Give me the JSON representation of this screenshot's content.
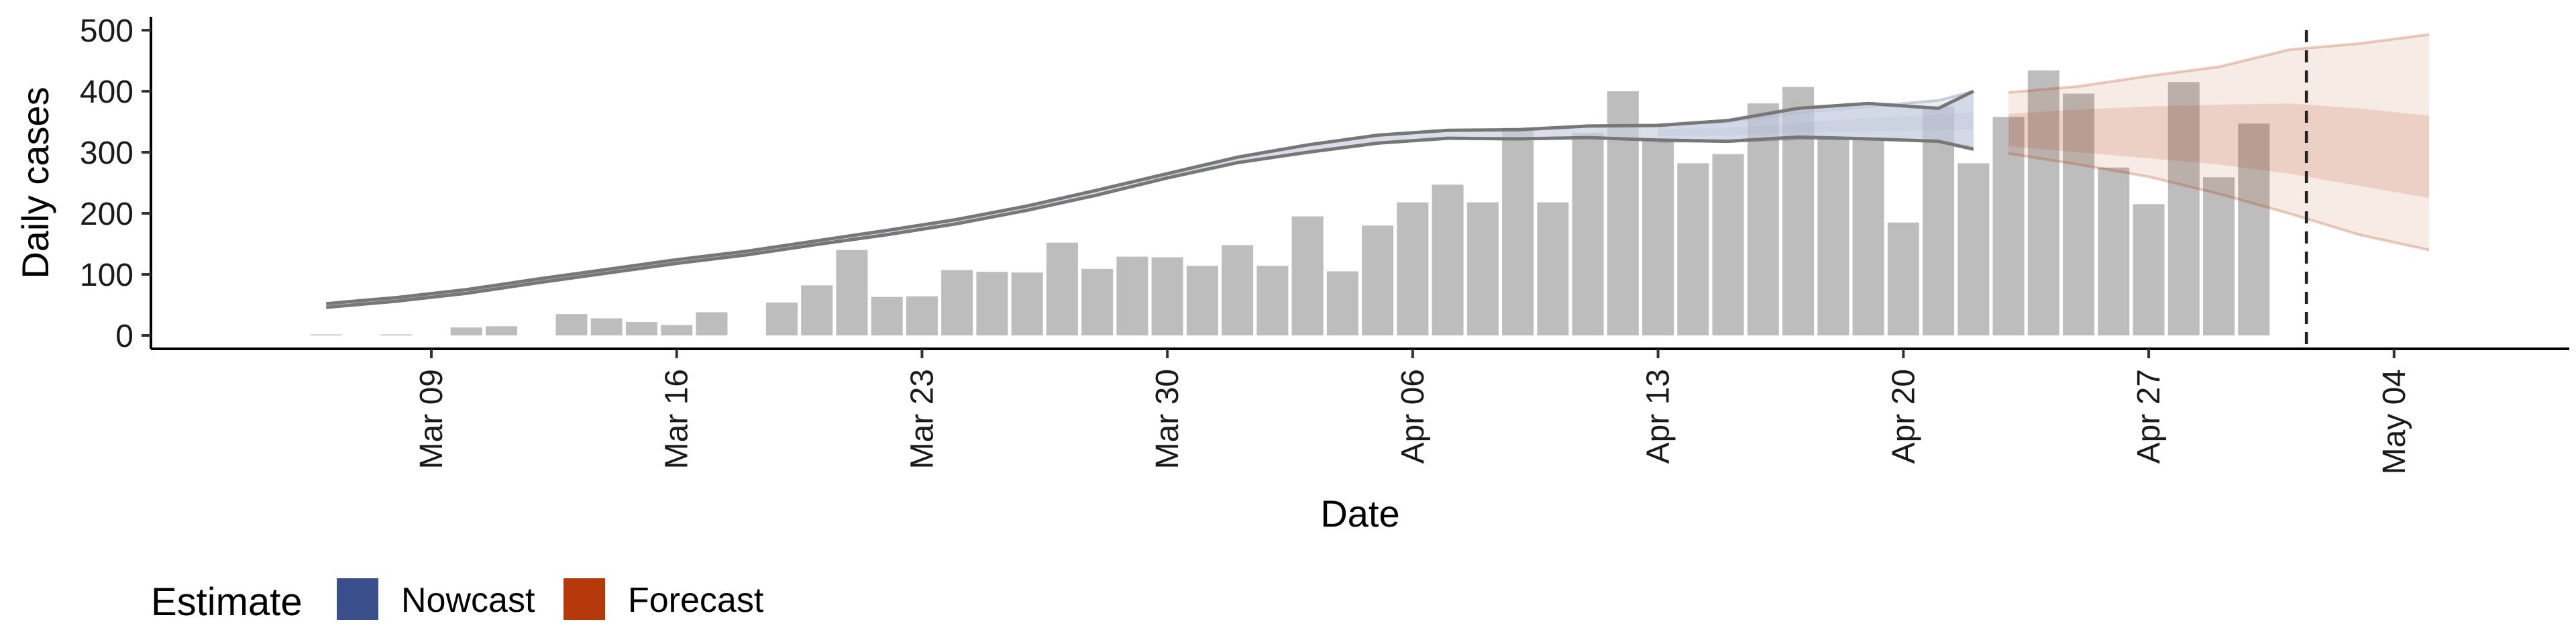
{
  "chart_data": {
    "type": "bar",
    "xlabel": "Date",
    "ylabel": "Daily cases",
    "ylim": [
      0,
      500
    ],
    "y_ticks": [
      0,
      100,
      200,
      300,
      400,
      500
    ],
    "x_ticks": [
      "2020-03-09",
      "2020-03-16",
      "2020-03-23",
      "2020-03-30",
      "2020-04-06",
      "2020-04-13",
      "2020-04-20",
      "2020-04-27",
      "2020-05-04"
    ],
    "x_tick_labels": [
      "Mar 09",
      "Mar 16",
      "Mar 23",
      "Mar 30",
      "Apr 06",
      "Apr 13",
      "Apr 20",
      "Apr 27",
      "May 04"
    ],
    "xlim": [
      "2020-03-01",
      "2020-05-09"
    ],
    "grid": false,
    "bar_color": "#bdbdbd",
    "reported_cases": {
      "dates": [
        "2020-03-06",
        "2020-03-07",
        "2020-03-08",
        "2020-03-09",
        "2020-03-10",
        "2020-03-11",
        "2020-03-12",
        "2020-03-13",
        "2020-03-14",
        "2020-03-15",
        "2020-03-16",
        "2020-03-17",
        "2020-03-18",
        "2020-03-19",
        "2020-03-20",
        "2020-03-21",
        "2020-03-22",
        "2020-03-23",
        "2020-03-24",
        "2020-03-25",
        "2020-03-26",
        "2020-03-27",
        "2020-03-28",
        "2020-03-29",
        "2020-03-30",
        "2020-03-31",
        "2020-04-01",
        "2020-04-02",
        "2020-04-03",
        "2020-04-04",
        "2020-04-05",
        "2020-04-06",
        "2020-04-07",
        "2020-04-08",
        "2020-04-09",
        "2020-04-10",
        "2020-04-11",
        "2020-04-12",
        "2020-04-13",
        "2020-04-14",
        "2020-04-15",
        "2020-04-16",
        "2020-04-17",
        "2020-04-18",
        "2020-04-19",
        "2020-04-20",
        "2020-04-21",
        "2020-04-22",
        "2020-04-23",
        "2020-04-24",
        "2020-04-25",
        "2020-04-26",
        "2020-04-27",
        "2020-04-28",
        "2020-04-29",
        "2020-04-30",
        "2020-05-01"
      ],
      "values": [
        1,
        0,
        1,
        0,
        13,
        15,
        0,
        35,
        28,
        22,
        17,
        38,
        0,
        54,
        82,
        140,
        63,
        64,
        107,
        104,
        103,
        152,
        109,
        129,
        128,
        114,
        148,
        114,
        195,
        105,
        180,
        218,
        247,
        218,
        340,
        218,
        332,
        400,
        320,
        282,
        297,
        380,
        407,
        324,
        324,
        185,
        375,
        282,
        358,
        434,
        396,
        275,
        215,
        415,
        259,
        347,
        0
      ]
    },
    "estimate_line": {
      "dates": [
        "2020-03-06",
        "2020-03-08",
        "2020-03-10",
        "2020-03-12",
        "2020-03-14",
        "2020-03-16",
        "2020-03-18",
        "2020-03-20",
        "2020-03-22",
        "2020-03-24",
        "2020-03-26",
        "2020-03-28",
        "2020-03-30",
        "2020-04-01",
        "2020-04-03",
        "2020-04-05",
        "2020-04-07",
        "2020-04-09",
        "2020-04-11",
        "2020-04-13",
        "2020-04-15",
        "2020-04-17",
        "2020-04-19",
        "2020-04-21",
        "2020-04-22"
      ],
      "upper": [
        52,
        62,
        75,
        92,
        108,
        124,
        138,
        155,
        172,
        190,
        212,
        238,
        265,
        292,
        312,
        328,
        336,
        337,
        343,
        344,
        352,
        372,
        380,
        372,
        400
      ],
      "lower": [
        46,
        56,
        69,
        86,
        102,
        118,
        132,
        149,
        165,
        183,
        205,
        230,
        258,
        283,
        300,
        315,
        323,
        322,
        324,
        320,
        318,
        325,
        322,
        318,
        305
      ]
    },
    "series": [
      {
        "name": "Nowcast",
        "color": "#3a4f8c",
        "dates": [
          "2020-04-13",
          "2020-04-15",
          "2020-04-17",
          "2020-04-19",
          "2020-04-21",
          "2020-04-22"
        ],
        "upper90": [
          345,
          350,
          365,
          375,
          385,
          400
        ],
        "upper50": [
          338,
          340,
          348,
          356,
          362,
          365
        ],
        "lower50": [
          326,
          328,
          332,
          334,
          336,
          338
        ],
        "lower90": [
          318,
          318,
          322,
          322,
          318,
          308
        ]
      },
      {
        "name": "Forecast",
        "color": "#b5390b",
        "dates": [
          "2020-04-23",
          "2020-04-25",
          "2020-04-27",
          "2020-04-29",
          "2020-05-01",
          "2020-05-03",
          "2020-05-05"
        ],
        "upper90": [
          398,
          408,
          425,
          440,
          468,
          478,
          493
        ],
        "upper50": [
          363,
          370,
          375,
          378,
          380,
          372,
          360
        ],
        "lower50": [
          310,
          300,
          290,
          280,
          265,
          245,
          225
        ],
        "lower90": [
          298,
          280,
          260,
          232,
          200,
          165,
          140
        ]
      }
    ],
    "forecast_start": "2020-05-01",
    "legend": {
      "position": "bottom-left",
      "title": "Estimate",
      "entries": [
        {
          "label": "Nowcast",
          "color": "#3a4f8c"
        },
        {
          "label": "Forecast",
          "color": "#b5390b"
        }
      ]
    }
  }
}
